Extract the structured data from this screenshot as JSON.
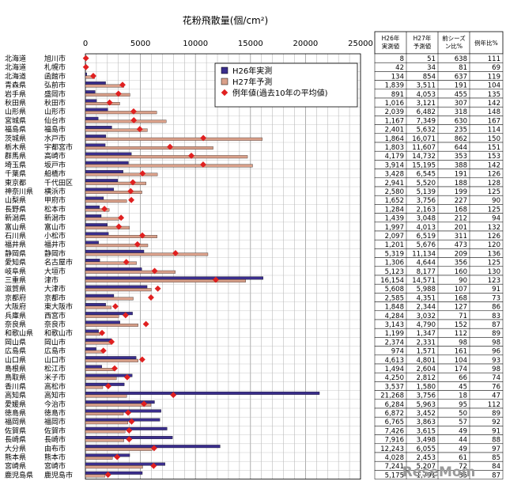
{
  "chart_data": {
    "type": "bar",
    "orientation": "horizontal",
    "title": "花粉飛散量(個/cm²)",
    "xlim": [
      0,
      25000
    ],
    "xticks": [
      0,
      5000,
      10000,
      15000,
      20000,
      25000
    ],
    "grid": true,
    "legend_position": "top-right",
    "legend": {
      "h26": "H26年実測",
      "h27": "H27年予測",
      "avg": "例年値(過去10年の平均値)"
    },
    "table_headers": [
      "H26年実測値",
      "H27年予測値",
      "前シーズン比%",
      "例年比%"
    ],
    "rows": [
      {
        "pref": "北海道",
        "city": "旭川市",
        "h26": 8,
        "h27": 51,
        "prev_ratio": 638,
        "avg_ratio": 111
      },
      {
        "pref": "北海道",
        "city": "札幌市",
        "h26": 42,
        "h27": 34,
        "prev_ratio": 81,
        "avg_ratio": 69
      },
      {
        "pref": "北海道",
        "city": "函館市",
        "h26": 134,
        "h27": 854,
        "prev_ratio": 637,
        "avg_ratio": 119
      },
      {
        "pref": "青森県",
        "city": "弘前市",
        "h26": 1839,
        "h27": 3511,
        "prev_ratio": 191,
        "avg_ratio": 104
      },
      {
        "pref": "岩手県",
        "city": "盛岡市",
        "h26": 891,
        "h27": 4053,
        "prev_ratio": 455,
        "avg_ratio": 135
      },
      {
        "pref": "秋田県",
        "city": "秋田市",
        "h26": 1016,
        "h27": 3121,
        "prev_ratio": 307,
        "avg_ratio": 142
      },
      {
        "pref": "山形県",
        "city": "山形市",
        "h26": 2039,
        "h27": 6482,
        "prev_ratio": 318,
        "avg_ratio": 148
      },
      {
        "pref": "宮城県",
        "city": "仙台市",
        "h26": 1167,
        "h27": 7349,
        "prev_ratio": 630,
        "avg_ratio": 167
      },
      {
        "pref": "福島県",
        "city": "福島市",
        "h26": 2401,
        "h27": 5632,
        "prev_ratio": 235,
        "avg_ratio": 114
      },
      {
        "pref": "茨城県",
        "city": "水戸市",
        "h26": 1864,
        "h27": 16071,
        "prev_ratio": 862,
        "avg_ratio": 150
      },
      {
        "pref": "栃木県",
        "city": "宇都宮市",
        "h26": 1803,
        "h27": 11607,
        "prev_ratio": 644,
        "avg_ratio": 151
      },
      {
        "pref": "群馬県",
        "city": "高崎市",
        "h26": 4179,
        "h27": 14732,
        "prev_ratio": 353,
        "avg_ratio": 153
      },
      {
        "pref": "埼玉県",
        "city": "坂戸市",
        "h26": 3914,
        "h27": 15195,
        "prev_ratio": 388,
        "avg_ratio": 142
      },
      {
        "pref": "千葉県",
        "city": "船橋市",
        "h26": 3428,
        "h27": 6545,
        "prev_ratio": 191,
        "avg_ratio": 126
      },
      {
        "pref": "東京都",
        "city": "千代田区",
        "h26": 2941,
        "h27": 5520,
        "prev_ratio": 188,
        "avg_ratio": 128
      },
      {
        "pref": "神奈川県",
        "city": "横浜市",
        "h26": 2580,
        "h27": 5139,
        "prev_ratio": 199,
        "avg_ratio": 125
      },
      {
        "pref": "山梨県",
        "city": "甲府市",
        "h26": 1652,
        "h27": 3756,
        "prev_ratio": 227,
        "avg_ratio": 90
      },
      {
        "pref": "長野県",
        "city": "松本市",
        "h26": 1284,
        "h27": 2163,
        "prev_ratio": 168,
        "avg_ratio": 125
      },
      {
        "pref": "新潟県",
        "city": "新潟市",
        "h26": 1439,
        "h27": 3048,
        "prev_ratio": 212,
        "avg_ratio": 94
      },
      {
        "pref": "富山県",
        "city": "富山市",
        "h26": 1997,
        "h27": 4013,
        "prev_ratio": 201,
        "avg_ratio": 132
      },
      {
        "pref": "石川県",
        "city": "小松市",
        "h26": 2097,
        "h27": 6519,
        "prev_ratio": 311,
        "avg_ratio": 126
      },
      {
        "pref": "福井県",
        "city": "福井市",
        "h26": 1201,
        "h27": 5676,
        "prev_ratio": 473,
        "avg_ratio": 120
      },
      {
        "pref": "静岡県",
        "city": "静岡市",
        "h26": 5319,
        "h27": 11134,
        "prev_ratio": 209,
        "avg_ratio": 136
      },
      {
        "pref": "愛知県",
        "city": "名古屋市",
        "h26": 1306,
        "h27": 4644,
        "prev_ratio": 356,
        "avg_ratio": 125
      },
      {
        "pref": "岐阜県",
        "city": "大垣市",
        "h26": 5123,
        "h27": 8177,
        "prev_ratio": 160,
        "avg_ratio": 130
      },
      {
        "pref": "三重県",
        "city": "津市",
        "h26": 16154,
        "h27": 14571,
        "prev_ratio": 90,
        "avg_ratio": 123
      },
      {
        "pref": "滋賀県",
        "city": "大津市",
        "h26": 5608,
        "h27": 5988,
        "prev_ratio": 107,
        "avg_ratio": 91
      },
      {
        "pref": "京都府",
        "city": "京都市",
        "h26": 2585,
        "h27": 4351,
        "prev_ratio": 168,
        "avg_ratio": 73
      },
      {
        "pref": "大阪府",
        "city": "東大阪市",
        "h26": 1848,
        "h27": 2344,
        "prev_ratio": 127,
        "avg_ratio": 86
      },
      {
        "pref": "兵庫県",
        "city": "西宮市",
        "h26": 4284,
        "h27": 3032,
        "prev_ratio": 71,
        "avg_ratio": 83
      },
      {
        "pref": "奈良県",
        "city": "奈良市",
        "h26": 3143,
        "h27": 4790,
        "prev_ratio": 152,
        "avg_ratio": 87
      },
      {
        "pref": "和歌山県",
        "city": "和歌山市",
        "h26": 1199,
        "h27": 1347,
        "prev_ratio": 112,
        "avg_ratio": 89
      },
      {
        "pref": "岡山県",
        "city": "岡山市",
        "h26": 2374,
        "h27": 2331,
        "prev_ratio": 98,
        "avg_ratio": 98
      },
      {
        "pref": "広島県",
        "city": "広島市",
        "h26": 974,
        "h27": 1571,
        "prev_ratio": 161,
        "avg_ratio": 96
      },
      {
        "pref": "山口県",
        "city": "山口市",
        "h26": 4613,
        "h27": 4801,
        "prev_ratio": 104,
        "avg_ratio": 93
      },
      {
        "pref": "島根県",
        "city": "松江市",
        "h26": 1494,
        "h27": 2604,
        "prev_ratio": 174,
        "avg_ratio": 98
      },
      {
        "pref": "鳥取県",
        "city": "米子市",
        "h26": 4250,
        "h27": 2812,
        "prev_ratio": 66,
        "avg_ratio": 74
      },
      {
        "pref": "香川県",
        "city": "高松市",
        "h26": 3537,
        "h27": 1580,
        "prev_ratio": 45,
        "avg_ratio": 76
      },
      {
        "pref": "高知県",
        "city": "高知市",
        "h26": 21268,
        "h27": 3756,
        "prev_ratio": 18,
        "avg_ratio": 47
      },
      {
        "pref": "愛媛県",
        "city": "今治市",
        "h26": 6284,
        "h27": 5963,
        "prev_ratio": 95,
        "avg_ratio": 112
      },
      {
        "pref": "徳島県",
        "city": "徳島市",
        "h26": 6872,
        "h27": 3452,
        "prev_ratio": 50,
        "avg_ratio": 89
      },
      {
        "pref": "福岡県",
        "city": "福岡市",
        "h26": 6765,
        "h27": 3863,
        "prev_ratio": 57,
        "avg_ratio": 92
      },
      {
        "pref": "佐賀県",
        "city": "佐賀市",
        "h26": 7426,
        "h27": 3615,
        "prev_ratio": 49,
        "avg_ratio": 91
      },
      {
        "pref": "長崎県",
        "city": "長崎市",
        "h26": 7916,
        "h27": 3498,
        "prev_ratio": 44,
        "avg_ratio": 88
      },
      {
        "pref": "大分県",
        "city": "由布市",
        "h26": 12243,
        "h27": 6055,
        "prev_ratio": 49,
        "avg_ratio": 97
      },
      {
        "pref": "熊本県",
        "city": "熊本市",
        "h26": 4028,
        "h27": 2453,
        "prev_ratio": 61,
        "avg_ratio": 85
      },
      {
        "pref": "宮崎県",
        "city": "宮崎市",
        "h26": 7241,
        "h27": 5207,
        "prev_ratio": 72,
        "avg_ratio": 84
      },
      {
        "pref": "鹿児島県",
        "city": "鹿児島市",
        "h26": 5175,
        "h27": 1791,
        "prev_ratio": 35,
        "avg_ratio": 87
      }
    ],
    "colors": {
      "h26": "#3a2e8c",
      "h27": "#d9a08a",
      "avg": "#e02020",
      "grid": "#888888"
    }
  },
  "watermark": "ReseMom"
}
